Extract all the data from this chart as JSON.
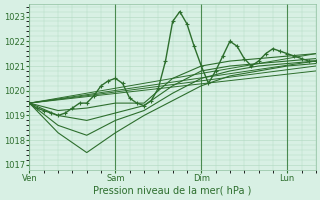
{
  "title": "",
  "xlabel": "Pression niveau de la mer( hPa )",
  "ylabel": "",
  "background_color": "#d8f0e4",
  "grid_color": "#b0d8c0",
  "line_color": "#2d6e2d",
  "marker_color": "#2d6e2d",
  "ylim": [
    1016.8,
    1023.5
  ],
  "yticks": [
    1017,
    1018,
    1019,
    1020,
    1021,
    1022,
    1023
  ],
  "xtick_labels": [
    "Ven",
    "Sam",
    "Dim",
    "Lun"
  ],
  "xtick_positions": [
    0,
    72,
    144,
    216
  ],
  "total_points": 240,
  "series": [
    {
      "x": [
        0,
        6,
        12,
        18,
        24,
        30,
        36,
        42,
        48,
        54,
        60,
        66,
        72,
        78,
        84,
        90,
        96,
        102,
        108,
        114,
        120,
        126,
        132,
        138,
        144,
        150,
        156,
        162,
        168,
        174,
        180,
        186,
        192,
        198,
        204,
        210,
        216,
        222,
        228,
        234,
        240
      ],
      "y": [
        1019.5,
        1019.3,
        1019.2,
        1019.1,
        1019.0,
        1019.1,
        1019.3,
        1019.5,
        1019.5,
        1019.8,
        1020.2,
        1020.4,
        1020.5,
        1020.3,
        1019.7,
        1019.5,
        1019.4,
        1019.6,
        1020.1,
        1021.2,
        1022.8,
        1023.2,
        1022.7,
        1021.8,
        1021.0,
        1020.3,
        1020.8,
        1021.4,
        1022.0,
        1021.8,
        1021.3,
        1021.0,
        1021.2,
        1021.5,
        1021.7,
        1021.6,
        1021.5,
        1021.4,
        1021.3,
        1021.2,
        1021.2
      ],
      "has_markers": true,
      "linewidth": 1.0
    },
    {
      "x": [
        0,
        24,
        48,
        72,
        96,
        120,
        144,
        168,
        192,
        216,
        240
      ],
      "y": [
        1019.5,
        1019.2,
        1019.3,
        1019.5,
        1019.5,
        1020.5,
        1021.0,
        1021.2,
        1021.3,
        1021.4,
        1021.5
      ],
      "has_markers": false,
      "linewidth": 0.8
    },
    {
      "x": [
        0,
        24,
        48,
        72,
        96,
        120,
        144,
        168,
        192,
        216,
        240
      ],
      "y": [
        1019.5,
        1019.0,
        1018.8,
        1019.1,
        1019.4,
        1020.2,
        1020.8,
        1021.0,
        1021.1,
        1021.2,
        1021.3
      ],
      "has_markers": false,
      "linewidth": 0.8
    },
    {
      "x": [
        0,
        24,
        48,
        72,
        96,
        120,
        144,
        168,
        192,
        216,
        240
      ],
      "y": [
        1019.5,
        1018.6,
        1018.2,
        1018.8,
        1019.2,
        1019.9,
        1020.5,
        1020.8,
        1021.0,
        1021.1,
        1021.2
      ],
      "has_markers": false,
      "linewidth": 0.8
    },
    {
      "x": [
        0,
        24,
        48,
        72,
        96,
        120,
        144,
        168,
        192,
        216,
        240
      ],
      "y": [
        1019.5,
        1018.3,
        1017.5,
        1018.3,
        1019.0,
        1019.6,
        1020.2,
        1020.6,
        1020.8,
        1021.0,
        1021.1
      ],
      "has_markers": false,
      "linewidth": 0.8
    },
    {
      "x": [
        0,
        240
      ],
      "y": [
        1019.5,
        1021.5
      ],
      "has_markers": false,
      "linewidth": 0.7
    },
    {
      "x": [
        0,
        240
      ],
      "y": [
        1019.5,
        1021.2
      ],
      "has_markers": false,
      "linewidth": 0.7
    },
    {
      "x": [
        0,
        240
      ],
      "y": [
        1019.5,
        1021.0
      ],
      "has_markers": false,
      "linewidth": 0.7
    },
    {
      "x": [
        0,
        240
      ],
      "y": [
        1019.5,
        1020.8
      ],
      "has_markers": false,
      "linewidth": 0.7
    }
  ]
}
